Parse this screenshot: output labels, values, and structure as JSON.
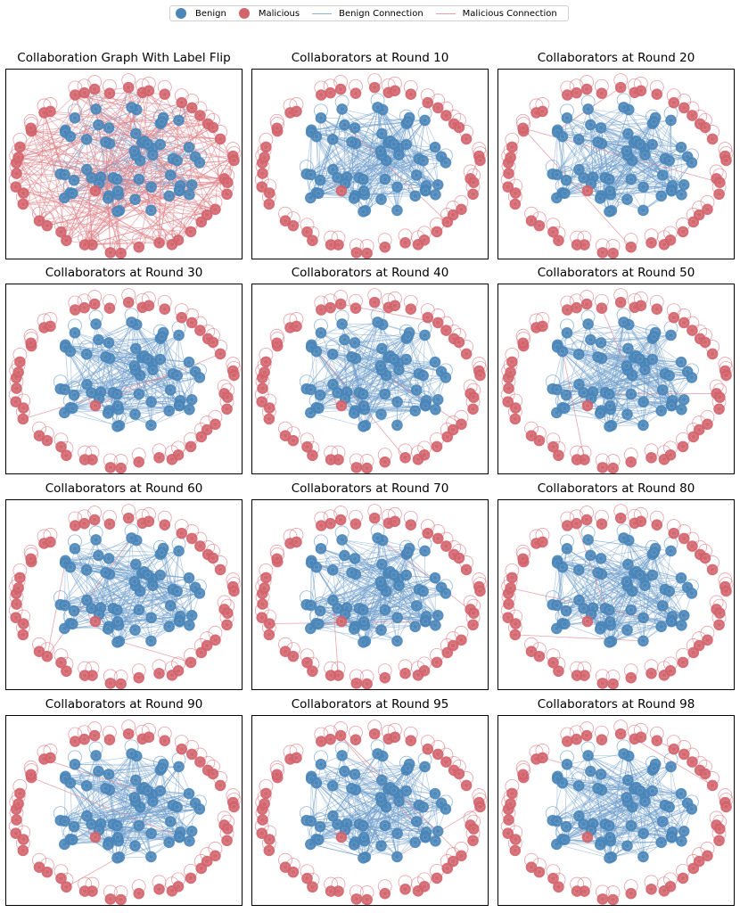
{
  "legend": {
    "benign": "Benign",
    "malicious": "Malicious",
    "benign_connection": "Benign Connection",
    "malicious_connection": "Malicious Connection"
  },
  "colors": {
    "benign": "#4a86b8",
    "malicious": "#d2636b",
    "benign_edge": "#6f9fcc",
    "malicious_edge": "#e08289"
  },
  "panels": [
    {
      "title": "Collaboration Graph With Label Flip",
      "malicious_edges": "dense"
    },
    {
      "title": "Collaborators at Round 10",
      "malicious_edges": "few"
    },
    {
      "title": "Collaborators at Round 20",
      "malicious_edges": "few"
    },
    {
      "title": "Collaborators at Round 30",
      "malicious_edges": "few"
    },
    {
      "title": "Collaborators at Round 40",
      "malicious_edges": "few"
    },
    {
      "title": "Collaborators at Round 50",
      "malicious_edges": "few"
    },
    {
      "title": "Collaborators at Round 60",
      "malicious_edges": "few"
    },
    {
      "title": "Collaborators at Round 70",
      "malicious_edges": "few"
    },
    {
      "title": "Collaborators at Round 80",
      "malicious_edges": "few"
    },
    {
      "title": "Collaborators at Round 90",
      "malicious_edges": "few"
    },
    {
      "title": "Collaborators at Round 95",
      "malicious_edges": "few"
    },
    {
      "title": "Collaborators at Round 98",
      "malicious_edges": "few"
    }
  ]
}
